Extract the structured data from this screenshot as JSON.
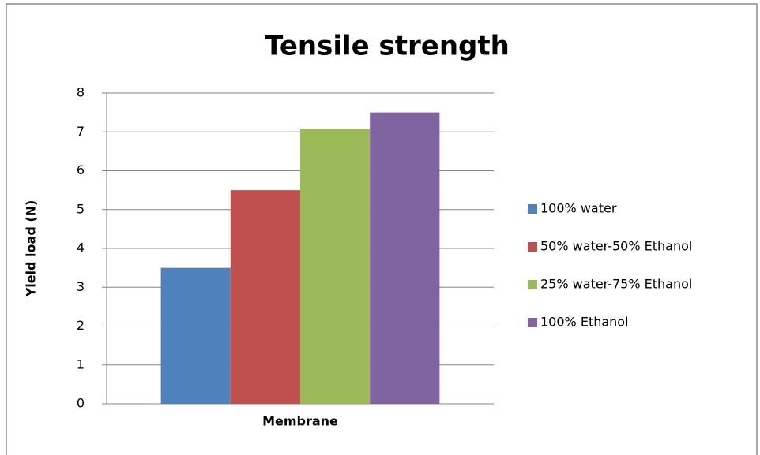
{
  "chart_data": {
    "type": "bar",
    "title": "Tensile strength",
    "y_label": "Yield load (N)",
    "categories": [
      "Membrane"
    ],
    "series": [
      {
        "name": "100% water",
        "color": "#4f81bd",
        "values": [
          3.5
        ]
      },
      {
        "name": "50% water-50% Ethanol",
        "color": "#c0504d",
        "values": [
          5.5
        ]
      },
      {
        "name": "25% water-75% Ethanol",
        "color": "#9bbb59",
        "values": [
          7.07
        ]
      },
      {
        "name": "100% Ethanol",
        "color": "#8064a2",
        "values": [
          7.5
        ]
      }
    ],
    "ylim": [
      0,
      8
    ],
    "yticks": [
      0,
      1,
      2,
      3,
      4,
      5,
      6,
      7,
      8
    ],
    "grid": true,
    "legend": "right"
  }
}
